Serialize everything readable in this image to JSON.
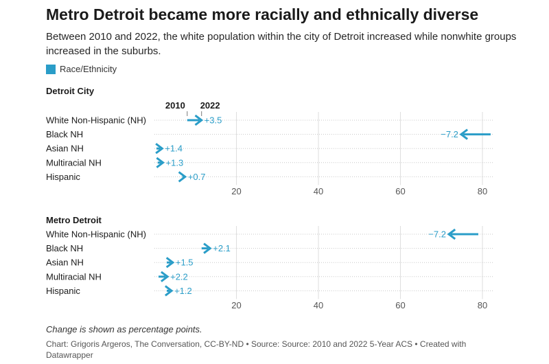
{
  "title": "Metro Detroit became more racially and ethnically diverse",
  "subtitle": "Between 2010 and 2022, the white population within the city of Detroit increased while nonwhite groups increased in the suburbs.",
  "legend": {
    "label": "Race/Ethnicity",
    "color": "#2a9dc8"
  },
  "year_labels": {
    "start": "2010",
    "end": "2022"
  },
  "note": "Change is shown as percentage points.",
  "source": "Chart: Grigoris Argeros, The Conversation, CC-BY-ND • Source: Source: 2010 and 2022 5-Year ACS • Created with Datawrapper",
  "chart_data": [
    {
      "type": "arrow",
      "title": "Detroit City",
      "xlim": [
        0,
        80
      ],
      "xticks": [
        20,
        40,
        60,
        80
      ],
      "series": [
        {
          "name": "2010",
          "values": [
            8,
            82,
            0.5,
            0.8,
            6.8
          ]
        },
        {
          "name": "2022",
          "values": [
            11.5,
            74.8,
            1.9,
            2.1,
            7.5
          ]
        }
      ],
      "categories": [
        "White Non-Hispanic (NH)",
        "Black NH",
        "Asian NH",
        "Multiracial NH",
        "Hispanic"
      ],
      "rows": [
        {
          "label": "White Non-Hispanic (NH)",
          "from": 8,
          "to": 11.5,
          "change": "+3.5"
        },
        {
          "label": "Black NH",
          "from": 82,
          "to": 74.8,
          "change": "−7.2"
        },
        {
          "label": "Asian NH",
          "from": 0.5,
          "to": 1.9,
          "change": "+1.4"
        },
        {
          "label": "Multiracial NH",
          "from": 0.8,
          "to": 2.1,
          "change": "+1.3"
        },
        {
          "label": "Hispanic",
          "from": 6.8,
          "to": 7.5,
          "change": "+0.7"
        }
      ]
    },
    {
      "type": "arrow",
      "title": "Metro Detroit",
      "xlim": [
        0,
        80
      ],
      "xticks": [
        20,
        40,
        60,
        80
      ],
      "series": [
        {
          "name": "2010",
          "values": [
            79,
            11.5,
            3,
            1,
            3
          ]
        },
        {
          "name": "2022",
          "values": [
            71.8,
            13.6,
            4.5,
            3.2,
            4.2
          ]
        }
      ],
      "categories": [
        "White Non-Hispanic (NH)",
        "Black NH",
        "Asian NH",
        "Multiracial NH",
        "Hispanic"
      ],
      "rows": [
        {
          "label": "White Non-Hispanic (NH)",
          "from": 79,
          "to": 71.8,
          "change": "−7.2"
        },
        {
          "label": "Black NH",
          "from": 11.5,
          "to": 13.6,
          "change": "+2.1"
        },
        {
          "label": "Asian NH",
          "from": 3,
          "to": 4.5,
          "change": "+1.5"
        },
        {
          "label": "Multiracial NH",
          "from": 1,
          "to": 3.2,
          "change": "+2.2"
        },
        {
          "label": "Hispanic",
          "from": 3,
          "to": 4.2,
          "change": "+1.2"
        }
      ]
    }
  ]
}
